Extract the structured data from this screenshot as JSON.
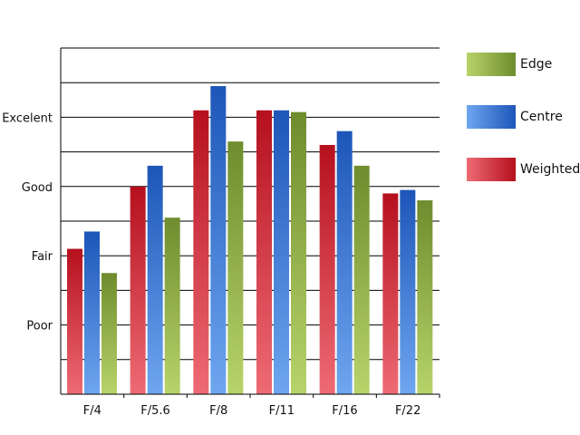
{
  "chart_data": {
    "type": "bar",
    "title": "",
    "xlabel": "",
    "ylabel": "",
    "categories": [
      "F/4",
      "F/5.6",
      "F/8",
      "F/11",
      "F/16",
      "F/22"
    ],
    "y_ticks": [
      {
        "label": "Poor",
        "value": 2
      },
      {
        "label": "Fair",
        "value": 4
      },
      {
        "label": "Good",
        "value": 6
      },
      {
        "label": "Excelent",
        "value": 8
      }
    ],
    "ylim": [
      0,
      10
    ],
    "grid": true,
    "series": [
      {
        "name": "Weighted",
        "values": [
          4.2,
          6.0,
          8.2,
          8.2,
          7.2,
          5.8
        ],
        "color_light": "#ee6b74",
        "color_dark": "#b5101e"
      },
      {
        "name": "Centre",
        "values": [
          4.7,
          6.6,
          8.9,
          8.2,
          7.6,
          5.9
        ],
        "color_light": "#6ea6f0",
        "color_dark": "#1d56b8"
      },
      {
        "name": "Edge",
        "values": [
          3.5,
          5.1,
          7.3,
          8.15,
          6.6,
          5.6
        ],
        "color_light": "#b7d46a",
        "color_dark": "#6f8c2e"
      }
    ],
    "legend_position": "right",
    "legend_order": [
      "Edge",
      "Centre",
      "Weighted"
    ]
  }
}
